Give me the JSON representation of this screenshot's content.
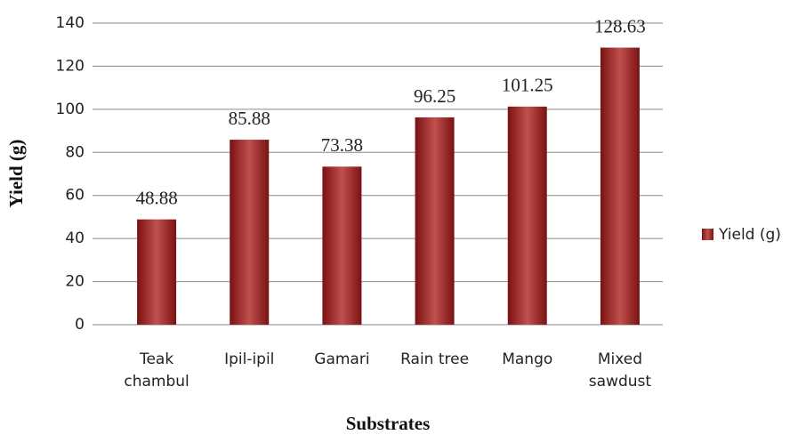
{
  "chart_data": {
    "type": "bar",
    "x_label": "Substrates",
    "y_label": "Yield (g)",
    "categories": [
      "Teak\nchambul",
      "Ipil-ipil",
      "Gamari",
      "Rain tree",
      "Mango",
      "Mixed\nsawdust"
    ],
    "series": [
      {
        "name": "Yield (g)",
        "color": "#c0504d",
        "values": [
          48.88,
          85.88,
          73.38,
          96.25,
          101.25,
          128.63
        ]
      }
    ],
    "ylim": [
      0,
      140
    ],
    "yticks": [
      0,
      20,
      40,
      60,
      80,
      100,
      120,
      140
    ],
    "grid": true,
    "legend": "right"
  }
}
